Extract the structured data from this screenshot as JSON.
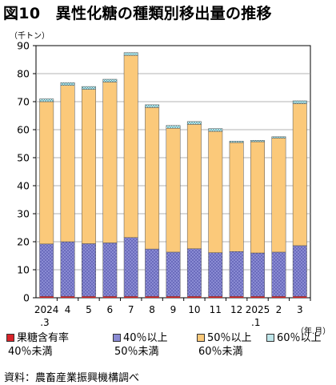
{
  "title": "図10　異性化糖の種類別移出量の推移",
  "source": "資料：農畜産業振興機構調べ",
  "chart_data": {
    "type": "bar",
    "stacked": true,
    "unit_label": "（千トン）",
    "xunit_label": "（年.月）",
    "ylim": [
      0,
      90
    ],
    "yticks": [
      0,
      10,
      20,
      30,
      40,
      50,
      60,
      70,
      80,
      90
    ],
    "categories": [
      [
        "2024",
        ".3"
      ],
      [
        "4",
        ""
      ],
      [
        "5",
        ""
      ],
      [
        "6",
        ""
      ],
      [
        "7",
        ""
      ],
      [
        "8",
        ""
      ],
      [
        "9",
        ""
      ],
      [
        "10",
        ""
      ],
      [
        "11",
        ""
      ],
      [
        "12",
        ""
      ],
      [
        "2025",
        ".1"
      ],
      [
        "2",
        ""
      ],
      [
        "3",
        ""
      ]
    ],
    "series": [
      {
        "name": "果糖含有率",
        "name2": "40％未満",
        "color": "#d8242a",
        "pattern": "solid",
        "values": [
          0.5,
          0.5,
          0.5,
          0.5,
          0.5,
          0.5,
          0.5,
          0.5,
          0.5,
          0.5,
          0.5,
          0.5,
          0.5
        ]
      },
      {
        "name": "40％以上",
        "name2": "50％未満",
        "color": "#8a8bd3",
        "pattern": "dots",
        "values": [
          18.7,
          19.5,
          18.8,
          19.1,
          21.0,
          16.9,
          15.8,
          17.0,
          15.6,
          16.0,
          15.5,
          15.8,
          18.1
        ]
      },
      {
        "name": "50％以上",
        "name2": "60％未満",
        "color": "#fbc97a",
        "pattern": "solid",
        "values": [
          50.8,
          55.8,
          55.1,
          57.4,
          65.0,
          50.5,
          44.2,
          44.4,
          43.3,
          38.9,
          39.7,
          40.7,
          50.7
        ]
      },
      {
        "name": "60％以上",
        "name2": "",
        "color": "#bfe6ea",
        "pattern": "grid",
        "values": [
          1.0,
          1.0,
          1.0,
          1.0,
          1.0,
          1.0,
          1.0,
          1.0,
          1.0,
          0.5,
          0.5,
          0.5,
          1.0
        ]
      }
    ]
  }
}
